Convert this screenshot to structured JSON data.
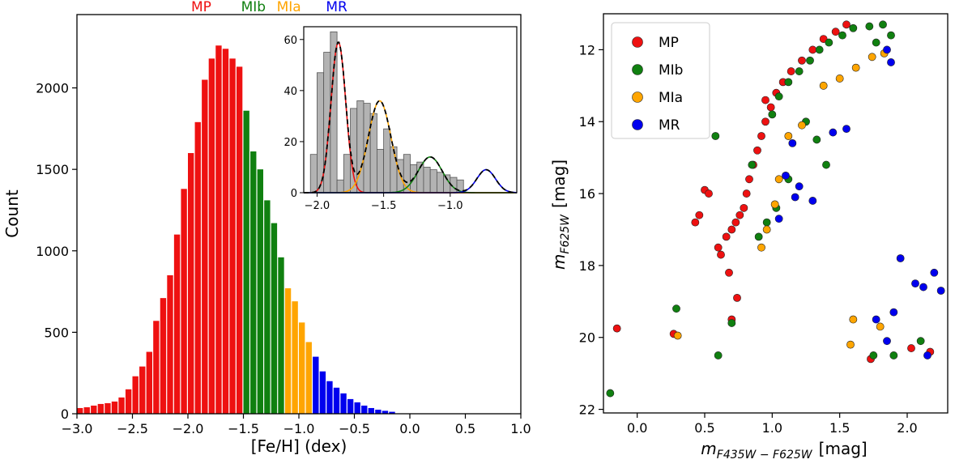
{
  "chart_data": [
    {
      "type": "bar",
      "title": "",
      "xlabel": "[Fe/H] (dex)",
      "ylabel": "Count",
      "xlim": [
        -3.0,
        1.0
      ],
      "ylim": [
        0,
        2450
      ],
      "xticks": [
        -3.0,
        -2.5,
        -2.0,
        -1.5,
        -1.0,
        -0.5,
        0.0,
        0.5,
        1.0
      ],
      "xtick_labels": [
        "−3.0",
        "−2.5",
        "−2.0",
        "−1.5",
        "−1.0",
        "−0.5",
        "0.0",
        "0.5",
        "1.0"
      ],
      "yticks": [
        0,
        500,
        1000,
        1500,
        2000
      ],
      "ytick_labels": [
        "0",
        "500",
        "1000",
        "1500",
        "2000"
      ],
      "bin_width": 0.0625,
      "bin_start": -3.0,
      "values": [
        35,
        40,
        50,
        60,
        65,
        75,
        100,
        150,
        230,
        290,
        380,
        570,
        710,
        850,
        1100,
        1380,
        1600,
        1790,
        2050,
        2180,
        2260,
        2240,
        2180,
        2130,
        1860,
        1610,
        1500,
        1310,
        1170,
        960,
        770,
        690,
        560,
        440,
        350,
        260,
        200,
        160,
        125,
        90,
        70,
        50,
        35,
        25,
        18,
        12
      ],
      "population_bins": {
        "MP": [
          0,
          23
        ],
        "MIb": [
          24,
          29
        ],
        "MIa": [
          30,
          33
        ],
        "MR": [
          34,
          45
        ]
      },
      "population_labels": [
        {
          "name": "MP",
          "x": -1.88,
          "color": "#ee1111"
        },
        {
          "name": "MIb",
          "x": -1.41,
          "color": "#108010"
        },
        {
          "name": "MIa",
          "x": -1.09,
          "color": "#ffa500"
        },
        {
          "name": "MR",
          "x": -0.66,
          "color": "#0000ee"
        }
      ],
      "inset": {
        "type": "histogram_with_gaussian_fits",
        "xlim": [
          -2.1,
          -0.5
        ],
        "ylim": [
          0,
          65
        ],
        "xticks": [
          -2.0,
          -1.5,
          -1.0
        ],
        "xtick_labels": [
          "−2.0",
          "−1.5",
          "−1.0"
        ],
        "yticks": [
          0,
          20,
          40,
          60
        ],
        "ytick_labels": [
          "0",
          "20",
          "40",
          "60"
        ],
        "bin_width": 0.05,
        "bin_start": -2.05,
        "values": [
          15,
          47,
          55,
          63,
          5,
          15,
          33,
          36,
          35,
          31,
          17,
          25,
          18,
          13,
          15,
          11,
          12,
          10,
          9,
          8,
          7,
          6,
          5
        ],
        "components": [
          {
            "name": "MP",
            "mean": -1.84,
            "sigma": 0.055,
            "amp": 59,
            "color": "#ee1111"
          },
          {
            "name": "MIa",
            "mean": -1.53,
            "sigma": 0.085,
            "amp": 36,
            "color": "#ffa500"
          },
          {
            "name": "MIb",
            "mean": -1.15,
            "sigma": 0.09,
            "amp": 14,
            "color": "#108010"
          },
          {
            "name": "MR",
            "mean": -0.73,
            "sigma": 0.07,
            "amp": 9,
            "color": "#0000ee"
          }
        ]
      }
    },
    {
      "type": "scatter",
      "title": "",
      "xlabel_main": "m",
      "xlabel_sub": "F435W − F625W",
      "xlabel_unit": "[mag]",
      "ylabel_main": "m",
      "ylabel_sub": "F625W",
      "ylabel_unit": "[mag]",
      "xlim": [
        -0.25,
        2.3
      ],
      "ylim": [
        22.1,
        11.0
      ],
      "y_inverted": true,
      "xticks": [
        0.0,
        0.5,
        1.0,
        1.5,
        2.0
      ],
      "xtick_labels": [
        "0.0",
        "0.5",
        "1.0",
        "1.5",
        "2.0"
      ],
      "yticks": [
        12,
        14,
        16,
        18,
        20,
        22
      ],
      "ytick_labels": [
        "12",
        "14",
        "16",
        "18",
        "20",
        "22"
      ],
      "legend": {
        "position": "top-left",
        "items": [
          {
            "label": "MP",
            "color": "#ee1111"
          },
          {
            "label": "MIb",
            "color": "#108010"
          },
          {
            "label": "MIa",
            "color": "#ffa500"
          },
          {
            "label": "MR",
            "color": "#0000ee"
          }
        ]
      },
      "series": [
        {
          "name": "MP",
          "color": "#ee1111",
          "points": [
            [
              -0.15,
              19.75
            ],
            [
              0.27,
              19.9
            ],
            [
              0.5,
              15.9
            ],
            [
              0.53,
              16.0
            ],
            [
              0.46,
              16.6
            ],
            [
              0.43,
              16.8
            ],
            [
              0.6,
              17.5
            ],
            [
              0.62,
              17.7
            ],
            [
              0.66,
              17.2
            ],
            [
              0.7,
              17.0
            ],
            [
              0.73,
              16.8
            ],
            [
              0.76,
              16.6
            ],
            [
              0.79,
              16.4
            ],
            [
              0.81,
              16.0
            ],
            [
              0.83,
              15.6
            ],
            [
              0.86,
              15.2
            ],
            [
              0.89,
              14.8
            ],
            [
              0.92,
              14.4
            ],
            [
              0.95,
              14.0
            ],
            [
              0.99,
              13.6
            ],
            [
              1.03,
              13.2
            ],
            [
              1.08,
              12.9
            ],
            [
              1.14,
              12.6
            ],
            [
              1.22,
              12.3
            ],
            [
              1.3,
              12.0
            ],
            [
              1.38,
              11.7
            ],
            [
              1.47,
              11.5
            ],
            [
              1.55,
              11.3
            ],
            [
              2.03,
              20.3
            ],
            [
              2.17,
              20.4
            ],
            [
              1.73,
              20.6
            ],
            [
              0.95,
              13.4
            ],
            [
              0.68,
              18.2
            ],
            [
              0.74,
              18.9
            ],
            [
              0.7,
              19.5
            ]
          ]
        },
        {
          "name": "MIb",
          "color": "#108010",
          "points": [
            [
              -0.2,
              21.55
            ],
            [
              0.29,
              19.2
            ],
            [
              0.58,
              14.4
            ],
            [
              0.85,
              15.2
            ],
            [
              1.0,
              13.8
            ],
            [
              1.05,
              13.3
            ],
            [
              1.12,
              12.9
            ],
            [
              1.2,
              12.6
            ],
            [
              1.28,
              12.3
            ],
            [
              1.35,
              12.0
            ],
            [
              1.42,
              11.8
            ],
            [
              1.52,
              11.6
            ],
            [
              1.6,
              11.4
            ],
            [
              1.72,
              11.35
            ],
            [
              1.82,
              11.3
            ],
            [
              1.88,
              11.6
            ],
            [
              1.77,
              11.8
            ],
            [
              1.25,
              14.0
            ],
            [
              1.33,
              14.5
            ],
            [
              1.4,
              15.2
            ],
            [
              1.12,
              15.6
            ],
            [
              1.03,
              16.4
            ],
            [
              0.96,
              16.8
            ],
            [
              0.9,
              17.2
            ],
            [
              1.9,
              20.5
            ],
            [
              2.1,
              20.1
            ],
            [
              1.75,
              20.5
            ],
            [
              0.6,
              20.5
            ],
            [
              0.7,
              19.6
            ]
          ]
        },
        {
          "name": "MIa",
          "color": "#ffa500",
          "points": [
            [
              0.3,
              19.95
            ],
            [
              1.12,
              14.4
            ],
            [
              1.22,
              14.1
            ],
            [
              1.38,
              13.0
            ],
            [
              1.5,
              12.8
            ],
            [
              1.62,
              12.5
            ],
            [
              1.74,
              12.2
            ],
            [
              1.83,
              12.1
            ],
            [
              1.05,
              15.6
            ],
            [
              1.02,
              16.3
            ],
            [
              0.96,
              17.0
            ],
            [
              0.92,
              17.5
            ],
            [
              1.6,
              19.5
            ],
            [
              1.8,
              19.7
            ],
            [
              1.58,
              20.2
            ]
          ]
        },
        {
          "name": "MR",
          "color": "#0000ee",
          "points": [
            [
              1.15,
              14.6
            ],
            [
              1.45,
              14.3
            ],
            [
              1.55,
              14.2
            ],
            [
              1.1,
              15.5
            ],
            [
              1.2,
              15.8
            ],
            [
              1.3,
              16.2
            ],
            [
              1.05,
              16.7
            ],
            [
              1.17,
              16.1
            ],
            [
              1.85,
              12.0
            ],
            [
              1.88,
              12.35
            ],
            [
              1.95,
              17.8
            ],
            [
              2.06,
              18.5
            ],
            [
              2.12,
              18.6
            ],
            [
              2.2,
              18.2
            ],
            [
              2.25,
              18.7
            ],
            [
              1.77,
              19.5
            ],
            [
              1.9,
              19.3
            ],
            [
              2.15,
              20.5
            ],
            [
              1.85,
              20.1
            ]
          ]
        }
      ]
    }
  ]
}
